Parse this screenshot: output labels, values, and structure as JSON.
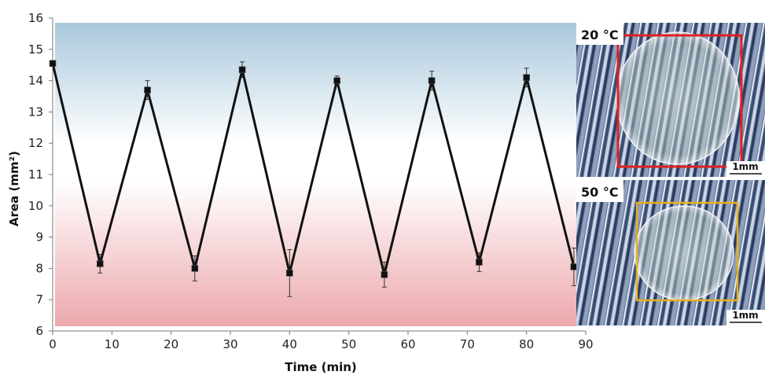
{
  "chart_data": {
    "type": "line",
    "title": "",
    "xlabel": "Time (min)",
    "ylabel": "Area (mm²)",
    "xlim": [
      0,
      90
    ],
    "ylim": [
      6,
      16
    ],
    "x_ticks": [
      0,
      10,
      20,
      30,
      40,
      50,
      60,
      70,
      80,
      90
    ],
    "y_ticks": [
      6,
      7,
      8,
      9,
      10,
      11,
      12,
      13,
      14,
      15,
      16
    ],
    "grid": false,
    "background": "vertical gradient: blue (top) → white (middle) → red (bottom)",
    "series": [
      {
        "x": [
          0,
          8,
          16,
          24,
          32,
          40,
          48,
          56,
          64,
          72,
          80,
          88
        ],
        "y": [
          14.55,
          8.15,
          13.7,
          8.0,
          14.35,
          7.85,
          14.0,
          7.8,
          14.0,
          8.2,
          14.1,
          8.05
        ],
        "error": [
          0.05,
          0.3,
          0.3,
          0.4,
          0.25,
          0.75,
          0.15,
          0.4,
          0.3,
          0.3,
          0.3,
          0.6
        ],
        "marker": "square",
        "color": "#111111"
      }
    ],
    "insets": [
      {
        "label": "20 °C",
        "frame_color": "#dd2222",
        "scale": "1mm"
      },
      {
        "label": "50 °C",
        "frame_color": "#e8b020",
        "scale": "1mm"
      }
    ]
  },
  "colors": {
    "gradient_top": "#a9c8dc",
    "gradient_mid": "#ffffff",
    "gradient_bottom": "#eeaaaf",
    "line": "#111111"
  }
}
